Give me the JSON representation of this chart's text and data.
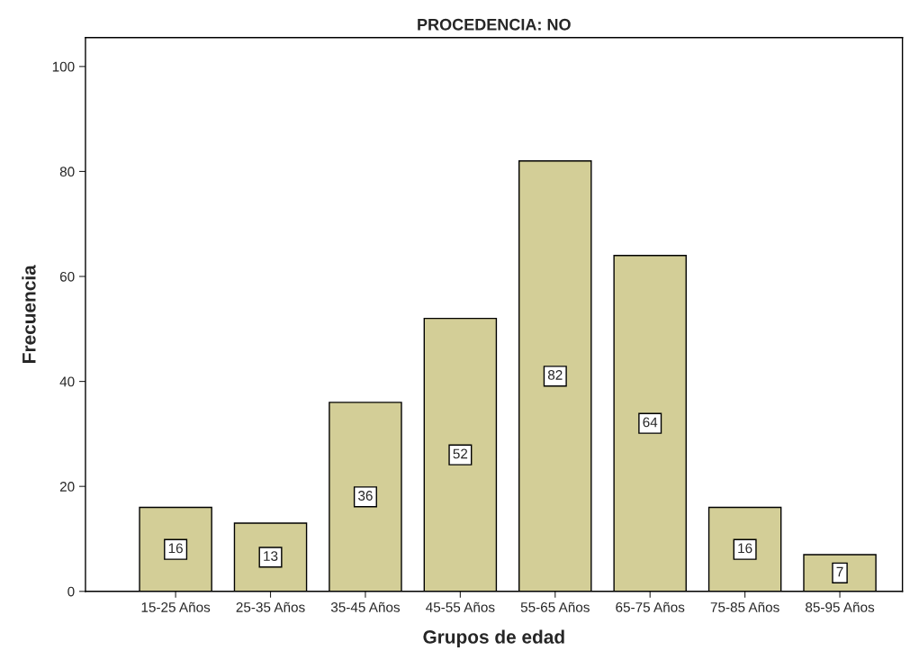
{
  "chart_data": {
    "type": "bar",
    "title": "PROCEDENCIA: NO",
    "xlabel": "Grupos de edad",
    "ylabel": "Frecuencia",
    "categories": [
      "15-25 Años",
      "25-35 Años",
      "35-45 Años",
      "45-55 Años",
      "55-65 Años",
      "65-75 Años",
      "75-85 Años",
      "85-95 Años"
    ],
    "values": [
      16,
      13,
      36,
      52,
      82,
      64,
      16,
      7
    ],
    "color": "#d3ce97",
    "ylim": [
      0,
      105.5
    ],
    "yticks": [
      0,
      20,
      40,
      60,
      80,
      100
    ],
    "grid": false,
    "data_labels": true
  }
}
